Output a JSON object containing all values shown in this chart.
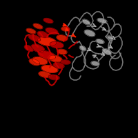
{
  "background_color": "#000000",
  "fig_width": 2.0,
  "fig_height": 2.0,
  "dpi": 100,
  "red_color": "#cc0000",
  "red_color2": "#ff2200",
  "red_color3": "#aa0000",
  "gray_color": "#888888",
  "gray_color2": "#aaaaaa",
  "gray_color3": "#666666",
  "title": ""
}
